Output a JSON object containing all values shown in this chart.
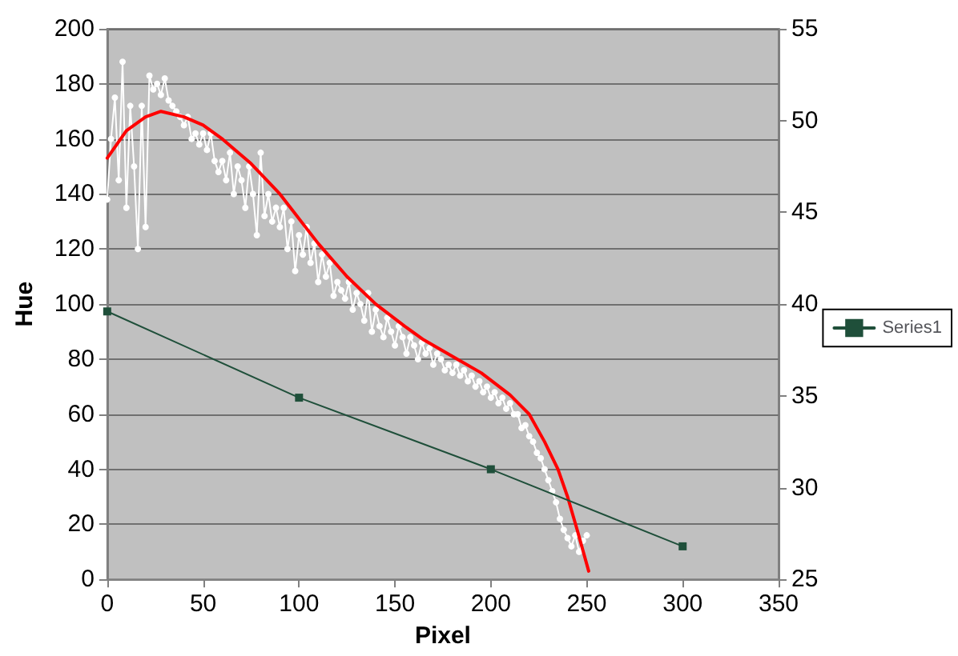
{
  "chart_data": {
    "type": "line",
    "xlabel": "Pixel",
    "ylabel": "Hue",
    "xlim": [
      0,
      350
    ],
    "xticks": [
      0,
      50,
      100,
      150,
      200,
      250,
      300,
      350
    ],
    "ylim": [
      0,
      200
    ],
    "yticks": [
      0,
      20,
      40,
      60,
      80,
      100,
      120,
      140,
      160,
      180,
      200
    ],
    "y2lim": [
      25,
      55
    ],
    "y2ticks": [
      25,
      30,
      35,
      40,
      45,
      50,
      55
    ],
    "grid": "y",
    "legend": "right",
    "line_style": "solid",
    "series": [
      {
        "color": "#ffffff",
        "marker": "circle",
        "x": [
          0,
          2,
          4,
          6,
          8,
          10,
          12,
          14,
          16,
          18,
          20,
          22,
          24,
          26,
          28,
          30,
          32,
          34,
          36,
          38,
          40,
          42,
          44,
          46,
          48,
          50,
          52,
          54,
          56,
          58,
          60,
          62,
          64,
          66,
          68,
          70,
          72,
          74,
          76,
          78,
          80,
          82,
          84,
          86,
          88,
          90,
          92,
          94,
          96,
          98,
          100,
          102,
          104,
          106,
          108,
          110,
          112,
          114,
          116,
          118,
          120,
          122,
          124,
          126,
          128,
          130,
          132,
          134,
          136,
          138,
          140,
          142,
          144,
          146,
          148,
          150,
          152,
          154,
          156,
          158,
          160,
          162,
          164,
          166,
          168,
          170,
          172,
          174,
          176,
          178,
          180,
          182,
          184,
          186,
          188,
          190,
          192,
          194,
          196,
          198,
          200,
          202,
          204,
          206,
          208,
          210,
          212,
          214,
          216,
          218,
          220,
          222,
          224,
          226,
          228,
          230,
          232,
          234,
          236,
          238,
          240,
          242,
          244,
          246,
          248,
          250
        ],
        "values": [
          138,
          160,
          175,
          145,
          188,
          135,
          172,
          150,
          120,
          172,
          128,
          183,
          178,
          180,
          176,
          182,
          174,
          172,
          170,
          168,
          165,
          168,
          160,
          162,
          158,
          162,
          156,
          162,
          152,
          148,
          152,
          145,
          155,
          140,
          150,
          145,
          135,
          150,
          140,
          125,
          155,
          132,
          140,
          130,
          135,
          128,
          135,
          120,
          130,
          112,
          125,
          118,
          128,
          115,
          122,
          108,
          118,
          110,
          115,
          103,
          108,
          105,
          102,
          108,
          98,
          104,
          100,
          94,
          104,
          90,
          98,
          92,
          88,
          95,
          90,
          85,
          92,
          88,
          82,
          88,
          85,
          80,
          86,
          82,
          84,
          78,
          82,
          80,
          76,
          78,
          75,
          78,
          74,
          76,
          72,
          74,
          70,
          72,
          68,
          70,
          66,
          68,
          64,
          66,
          62,
          64,
          60,
          60,
          55,
          56,
          52,
          50,
          46,
          44,
          40,
          36,
          32,
          28,
          22,
          18,
          15,
          12,
          16,
          10,
          14,
          16
        ]
      },
      {
        "type": "line",
        "color": "#ff0000",
        "marker": "none",
        "x": [
          0,
          10,
          20,
          28,
          40,
          50,
          60,
          75,
          90,
          110,
          125,
          140,
          155,
          165,
          180,
          195,
          210,
          220,
          228,
          235,
          240,
          245,
          251
        ],
        "values": [
          153,
          163,
          168,
          170,
          168,
          165,
          160,
          151,
          140,
          122,
          110,
          100,
          92,
          87,
          81,
          75,
          67,
          60,
          50,
          40,
          30,
          18,
          3
        ]
      },
      {
        "name": "Series1",
        "color": "#1f4f3a",
        "marker": "square",
        "axis": "y2",
        "x": [
          0,
          100,
          200,
          300
        ],
        "values": [
          39.6,
          34.9,
          31.0,
          26.8
        ]
      }
    ]
  }
}
